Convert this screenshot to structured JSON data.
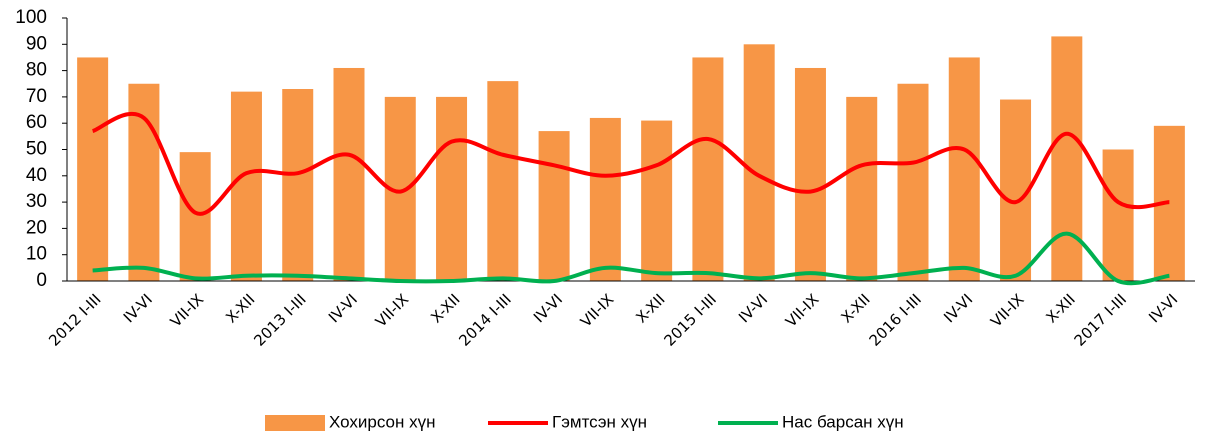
{
  "chart_data": {
    "type": "bar",
    "categories": [
      "2012 I-III",
      "IV-VI",
      "VII-IX",
      "X-XII",
      "2013 I-III",
      "IV-VI",
      "VII-IX",
      "X-XII",
      "2014 I-III",
      "IV-VI",
      "VII-IX",
      "X-XII",
      "2015 I-III",
      "IV-VI",
      "VII-IX",
      "X-XII",
      "2016 I-III",
      "IV-VI",
      "VII-IX",
      "X-XII",
      "2017 I-III",
      "IV-VI"
    ],
    "series": [
      {
        "name": "Хохирсон хүн",
        "type": "bar",
        "color": "#f79646",
        "values": [
          85,
          75,
          49,
          72,
          73,
          81,
          70,
          70,
          76,
          57,
          62,
          61,
          85,
          90,
          81,
          70,
          75,
          85,
          69,
          93,
          50,
          59
        ]
      },
      {
        "name": "Гэмтсэн хүн",
        "type": "line",
        "color": "#ff0000",
        "values": [
          57,
          62,
          26,
          41,
          41,
          48,
          34,
          53,
          48,
          44,
          40,
          44,
          54,
          40,
          34,
          44,
          45,
          50,
          30,
          56,
          30,
          30
        ]
      },
      {
        "name": "Нас барсан хүн",
        "type": "line",
        "color": "#00b050",
        "values": [
          4,
          5,
          1,
          2,
          2,
          1,
          0,
          0,
          1,
          0,
          5,
          3,
          3,
          1,
          3,
          1,
          3,
          5,
          2,
          18,
          0,
          2
        ]
      }
    ],
    "ylim": [
      0,
      100
    ],
    "yticks": [
      0,
      10,
      20,
      30,
      40,
      50,
      60,
      70,
      80,
      90,
      100
    ],
    "grid": false,
    "legend": "bottom"
  }
}
